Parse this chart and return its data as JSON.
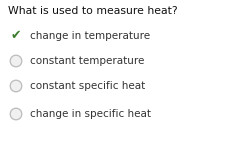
{
  "title": "What is used to measure heat?",
  "options": [
    {
      "text": "change in temperature",
      "correct": true
    },
    {
      "text": "constant temperature",
      "correct": false
    },
    {
      "text": "constant specific heat",
      "correct": false
    },
    {
      "text": "change in specific heat",
      "correct": false
    }
  ],
  "bg_color": "#ffffff",
  "title_color": "#111111",
  "title_fontsize": 7.8,
  "option_fontsize": 7.5,
  "check_color": "#3a7d2c",
  "radio_border_color": "#bbbbbb",
  "radio_inner_color": "#f0f0f0",
  "text_color": "#333333"
}
